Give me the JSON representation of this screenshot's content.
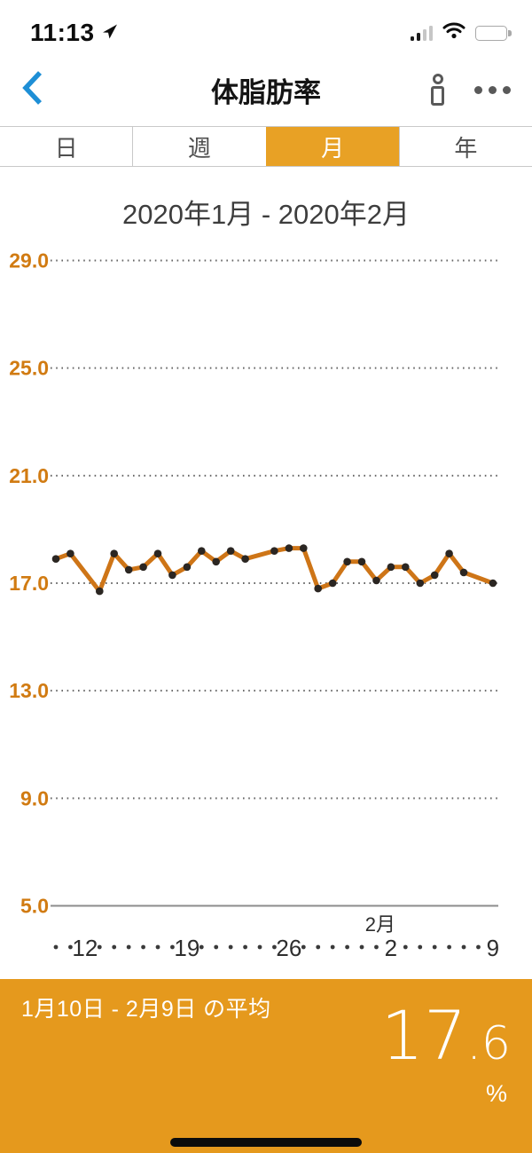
{
  "status_bar": {
    "time": "11:13"
  },
  "header": {
    "title": "体脂肪率"
  },
  "tabs": {
    "active_index": 2,
    "items": [
      {
        "label": "日"
      },
      {
        "label": "週"
      },
      {
        "label": "月"
      },
      {
        "label": "年"
      }
    ]
  },
  "chart_data": {
    "type": "line",
    "title": "2020年1月 - 2020年2月",
    "unit": "%",
    "ylim": [
      5.0,
      29.0
    ],
    "yticks": [
      29.0,
      25.0,
      21.0,
      17.0,
      13.0,
      9.0,
      5.0
    ],
    "grid": "dotted",
    "legend": "none",
    "day_labels": [
      "·",
      "·",
      "12",
      "·",
      "·",
      "·",
      "·",
      "·",
      "·",
      "19",
      "·",
      "·",
      "·",
      "·",
      "·",
      "·",
      "26",
      "·",
      "·",
      "·",
      "·",
      "·",
      "·",
      "2",
      "·",
      "·",
      "·",
      "·",
      "·",
      "·",
      "9"
    ],
    "month_label": {
      "text": "2月",
      "day_index": 23
    },
    "values": [
      17.9,
      18.1,
      null,
      16.7,
      18.1,
      17.5,
      17.6,
      18.1,
      17.3,
      17.6,
      18.2,
      17.8,
      18.2,
      17.9,
      null,
      18.2,
      18.3,
      18.3,
      16.8,
      17.0,
      17.8,
      17.8,
      17.1,
      17.6,
      17.6,
      17.0,
      17.3,
      18.1,
      17.4,
      null,
      17.0
    ]
  },
  "summary": {
    "label": "1月10日 - 2月9日 の平均",
    "value": "17.6",
    "value_int": "17",
    "value_decimal": ".6",
    "unit": "%"
  },
  "colors": {
    "accent": "#E8A125",
    "panel": "#E5991D",
    "line": "#CE7517",
    "point": "#2B2622",
    "axis_label": "#D17B12",
    "grid_dot": "#666666",
    "baseline": "#8C8C8C",
    "back_blue": "#1E8FD6"
  }
}
